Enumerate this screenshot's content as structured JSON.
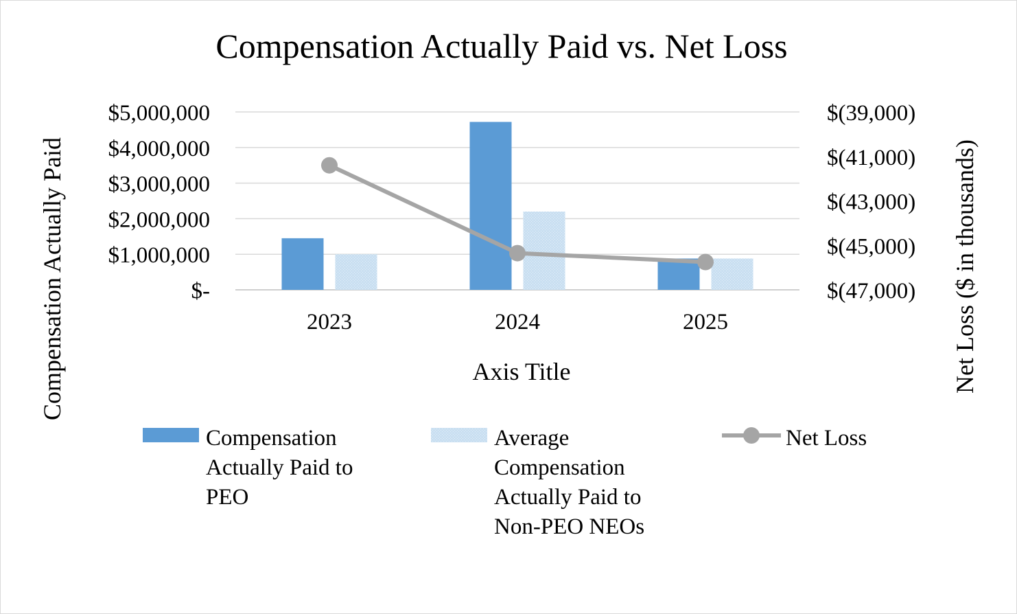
{
  "chart_data": {
    "type": "bar",
    "title": "Compensation Actually Paid vs. Net Loss",
    "xlabel": "Axis Title",
    "ylabel": "Compensation Actually Paid",
    "y2label": "Net Loss ($ in thousands)",
    "categories": [
      "2023",
      "2024",
      "2025"
    ],
    "ylim": [
      0,
      5000000
    ],
    "y_ticks": [
      0,
      1000000,
      2000000,
      3000000,
      4000000,
      5000000
    ],
    "y_tick_labels": [
      "$-",
      "$1,000,000",
      "$2,000,000",
      "$3,000,000",
      "$4,000,000",
      "$5,000,000"
    ],
    "y2lim": [
      -47000,
      -39000
    ],
    "y2_ticks": [
      -47000,
      -45000,
      -43000,
      -41000,
      -39000
    ],
    "y2_tick_labels": [
      "$(47,000)",
      "$(45,000)",
      "$(43,000)",
      "$(41,000)",
      "$(39,000)"
    ],
    "grid": true,
    "legend_position": "bottom",
    "series": [
      {
        "name": "Compensation Actually Paid to PEO",
        "name_lines": [
          "Compensation",
          "Actually Paid to",
          "PEO"
        ],
        "type": "bar",
        "axis": "left",
        "color": "#5b9bd5",
        "values": [
          1450000,
          4720000,
          880000
        ]
      },
      {
        "name": "Average Compensation Actually Paid to Non-PEO NEOs",
        "name_lines": [
          "Average",
          "Compensation",
          "Actually Paid to",
          "Non-PEO NEOs"
        ],
        "type": "bar",
        "axis": "left",
        "color": "#bdd7ee",
        "values": [
          1000000,
          2200000,
          880000
        ]
      },
      {
        "name": "Net Loss",
        "name_lines": [
          "Net Loss"
        ],
        "type": "line",
        "axis": "right",
        "color": "#a5a5a5",
        "values": [
          -41400,
          -45350,
          -45750
        ]
      }
    ]
  }
}
